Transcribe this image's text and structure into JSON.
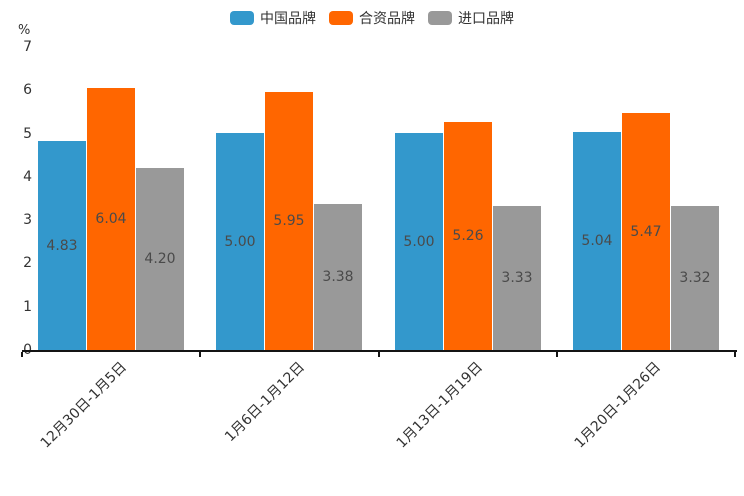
{
  "chart_data": {
    "type": "bar",
    "title": "",
    "unit_label": "%",
    "categories": [
      "12月30日-1月5日",
      "1月6日-1月12日",
      "1月13日-1月19日",
      "1月20日-1月26日"
    ],
    "series": [
      {
        "name": "中国品牌",
        "color": "#3398CC",
        "values": [
          4.83,
          5.0,
          5.0,
          5.04
        ]
      },
      {
        "name": "合资品牌",
        "color": "#FF6600",
        "values": [
          6.04,
          5.95,
          5.26,
          5.47
        ]
      },
      {
        "name": "进口品牌",
        "color": "#999999",
        "values": [
          4.2,
          3.38,
          3.33,
          3.32
        ]
      }
    ],
    "ylim": [
      0,
      7
    ],
    "y_ticks": [
      0,
      1,
      2,
      3,
      4,
      5,
      6,
      7
    ],
    "value_label_decimals": 2,
    "value_label_position": "inside-center",
    "legend_position": "top-center",
    "grid": false,
    "x_label_rotation_deg": 45,
    "text_color": "#333333",
    "value_label_color": "#4a4a4a",
    "axis_color": "#141414",
    "background_color": "#ffffff"
  }
}
